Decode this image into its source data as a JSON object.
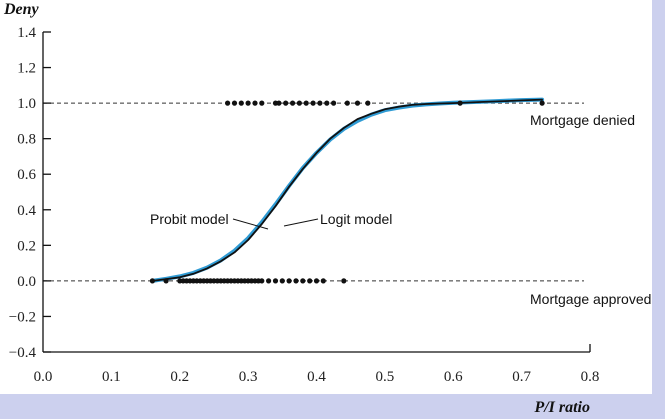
{
  "chart_data": {
    "type": "scatter",
    "title": "",
    "xlabel": "P/I ratio",
    "ylabel": "Deny",
    "xlim": [
      0.0,
      0.8
    ],
    "ylim": [
      -0.4,
      1.4
    ],
    "x_ticks": [
      "0.0",
      "0.1",
      "0.2",
      "0.3",
      "0.4",
      "0.5",
      "0.6",
      "0.7",
      "0.8"
    ],
    "y_ticks": [
      "1.4",
      "1.2",
      "1.0",
      "0.8",
      "0.6",
      "0.4",
      "0.2",
      "0.0",
      "−0.2",
      "−0.4"
    ],
    "grid": false,
    "reference_lines": [
      {
        "y": 1.0,
        "style": "dashed"
      },
      {
        "y": 0.0,
        "style": "dashed"
      }
    ],
    "series": [
      {
        "name": "Probit model",
        "kind": "line",
        "color": "#111111",
        "x": [
          0.16,
          0.18,
          0.2,
          0.22,
          0.24,
          0.26,
          0.28,
          0.3,
          0.32,
          0.34,
          0.36,
          0.38,
          0.4,
          0.42,
          0.44,
          0.46,
          0.48,
          0.5,
          0.52,
          0.54,
          0.56,
          0.58,
          0.6,
          0.62,
          0.64,
          0.66,
          0.68,
          0.7,
          0.73
        ],
        "y": [
          0.0,
          0.01,
          0.02,
          0.04,
          0.07,
          0.11,
          0.16,
          0.23,
          0.32,
          0.42,
          0.53,
          0.63,
          0.72,
          0.8,
          0.86,
          0.91,
          0.94,
          0.965,
          0.98,
          0.99,
          0.995,
          0.998,
          1.0,
          1.003,
          1.006,
          1.009,
          1.012,
          1.015,
          1.02
        ]
      },
      {
        "name": "Logit model",
        "kind": "line",
        "color": "#2f9bd4",
        "x": [
          0.16,
          0.18,
          0.2,
          0.22,
          0.24,
          0.26,
          0.28,
          0.3,
          0.32,
          0.34,
          0.36,
          0.38,
          0.4,
          0.42,
          0.44,
          0.46,
          0.48,
          0.5,
          0.52,
          0.54,
          0.56,
          0.58,
          0.6,
          0.62,
          0.64,
          0.66,
          0.68,
          0.7,
          0.73
        ],
        "y": [
          0.0,
          0.012,
          0.025,
          0.045,
          0.075,
          0.115,
          0.17,
          0.24,
          0.33,
          0.43,
          0.535,
          0.635,
          0.72,
          0.795,
          0.855,
          0.9,
          0.935,
          0.96,
          0.975,
          0.986,
          0.993,
          0.998,
          1.002,
          1.005,
          1.008,
          1.011,
          1.014,
          1.017,
          1.02
        ]
      },
      {
        "name": "",
        "kind": "points",
        "color": "#111111",
        "x": [
          0.27,
          0.28,
          0.29,
          0.3,
          0.31,
          0.32,
          0.34,
          0.345,
          0.355,
          0.365,
          0.375,
          0.385,
          0.395,
          0.405,
          0.415,
          0.425,
          0.445,
          0.46,
          0.475,
          0.61,
          0.73
        ],
        "y": [
          1,
          1,
          1,
          1,
          1,
          1,
          1,
          1,
          1,
          1,
          1,
          1,
          1,
          1,
          1,
          1,
          1,
          1,
          1,
          1,
          1
        ]
      },
      {
        "name": "",
        "kind": "points",
        "color": "#111111",
        "x": [
          0.16,
          0.18,
          0.2,
          0.205,
          0.21,
          0.215,
          0.22,
          0.225,
          0.23,
          0.235,
          0.24,
          0.245,
          0.25,
          0.255,
          0.26,
          0.265,
          0.27,
          0.275,
          0.28,
          0.285,
          0.29,
          0.295,
          0.3,
          0.305,
          0.31,
          0.315,
          0.32,
          0.33,
          0.34,
          0.35,
          0.36,
          0.37,
          0.38,
          0.39,
          0.4,
          0.41,
          0.44
        ],
        "y": [
          0,
          0,
          0,
          0,
          0,
          0,
          0,
          0,
          0,
          0,
          0,
          0,
          0,
          0,
          0,
          0,
          0,
          0,
          0,
          0,
          0,
          0,
          0,
          0,
          0,
          0,
          0,
          0,
          0,
          0,
          0,
          0,
          0,
          0,
          0,
          0,
          0
        ]
      }
    ],
    "annotations": [
      {
        "text": "Probit model",
        "points_to": [
          0.35,
          0.33
        ]
      },
      {
        "text": "Logit model",
        "points_to": [
          0.36,
          0.31
        ]
      },
      {
        "text": "Mortgage denied",
        "near": [
          0.73,
          1.0
        ]
      },
      {
        "text": "Mortgage approved",
        "near": [
          0.73,
          0.0
        ]
      }
    ]
  }
}
